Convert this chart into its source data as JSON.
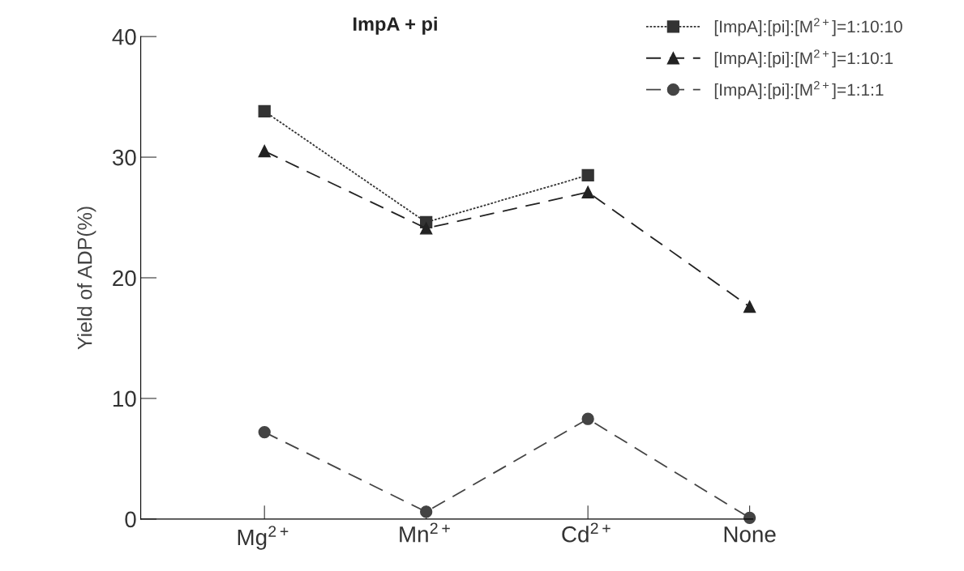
{
  "chart_data": {
    "type": "line",
    "title": "ImpA + pi",
    "ylabel": "Yield of ADP(%)",
    "categories": [
      "Mg$^{2+}$",
      "Mn$^{2+}$",
      "Cd$^{2+}$",
      "None"
    ],
    "series": [
      {
        "name": "[ImpA]:[pi]:[M$^{2+}$]=1:10:10",
        "color": "#333333",
        "marker": "square",
        "line_style": "dotted",
        "values": [
          33.8,
          24.6,
          28.5,
          null
        ]
      },
      {
        "name": "[ImpA]:[pi]:[M$^{2+}$]=1:10:1",
        "color": "#222222",
        "marker": "triangle",
        "line_style": "dashed",
        "values": [
          30.5,
          24.1,
          27.1,
          17.6
        ]
      },
      {
        "name": "[ImpA]:[pi]:[M$^{2+}$]=1:1:1",
        "color": "#444444",
        "marker": "circle",
        "line_style": "dashed",
        "values": [
          7.2,
          0.6,
          8.3,
          0.1
        ]
      }
    ],
    "ylim": [
      0,
      40
    ],
    "yticks": [
      0,
      10,
      20,
      30,
      40
    ],
    "grid": false,
    "legend": "top right"
  }
}
